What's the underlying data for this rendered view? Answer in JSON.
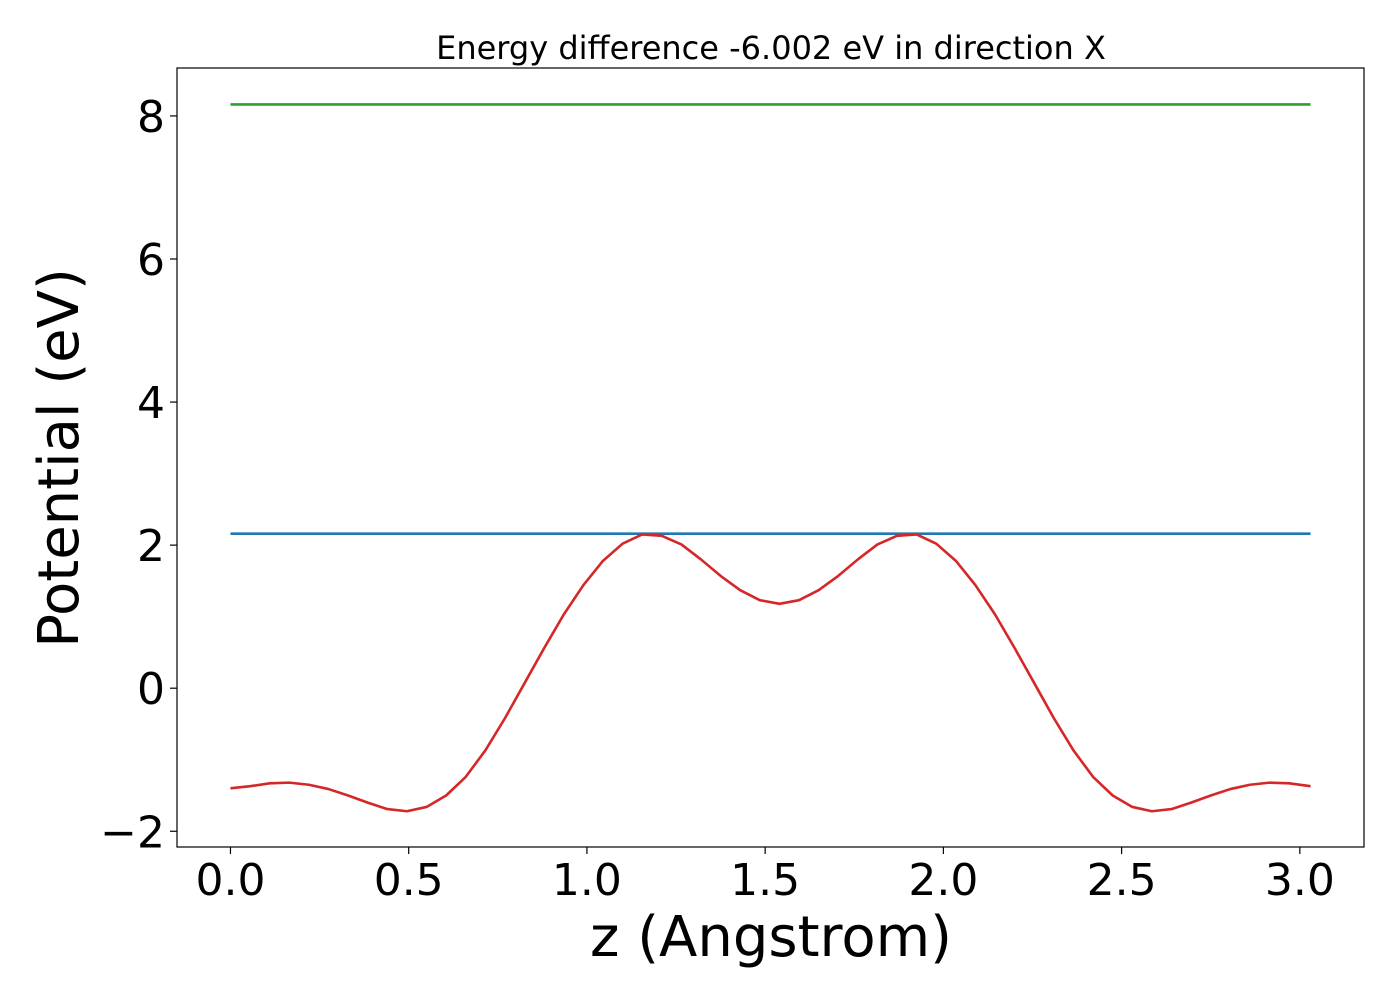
{
  "chart_data": {
    "type": "line",
    "title": "Energy difference -6.002 eV in direction X",
    "xlabel": "z (Angstrom)",
    "ylabel": "Potential (eV)",
    "xlim": [
      -0.15,
      3.18
    ],
    "ylim": [
      -2.22,
      8.67
    ],
    "xticks": [
      0.0,
      0.5,
      1.0,
      1.5,
      2.0,
      2.5,
      3.0
    ],
    "xtick_labels": [
      "0.0",
      "0.5",
      "1.0",
      "1.5",
      "2.0",
      "2.5",
      "3.0"
    ],
    "yticks": [
      -2,
      0,
      2,
      4,
      6,
      8
    ],
    "ytick_labels": [
      "−2",
      "0",
      "2",
      "4",
      "6",
      "8"
    ],
    "grid": false,
    "legend": "none",
    "series": [
      {
        "color": "#2ca02c",
        "x": [
          0.0,
          3.03
        ],
        "y": [
          8.16,
          8.16
        ]
      },
      {
        "color": "#1f77b4",
        "x": [
          0.0,
          3.03
        ],
        "y": [
          2.16,
          2.16
        ]
      },
      {
        "color": "#d62728",
        "x": [
          0.0,
          0.055,
          0.11,
          0.165,
          0.22,
          0.275,
          0.33,
          0.385,
          0.44,
          0.495,
          0.55,
          0.605,
          0.66,
          0.715,
          0.77,
          0.825,
          0.88,
          0.935,
          0.99,
          1.045,
          1.1,
          1.155,
          1.21,
          1.265,
          1.32,
          1.375,
          1.43,
          1.485,
          1.54,
          1.595,
          1.65,
          1.705,
          1.76,
          1.815,
          1.87,
          1.925,
          1.98,
          2.035,
          2.09,
          2.145,
          2.2,
          2.255,
          2.31,
          2.365,
          2.42,
          2.475,
          2.53,
          2.585,
          2.64,
          2.695,
          2.75,
          2.805,
          2.86,
          2.915,
          2.97,
          3.03
        ],
        "y": [
          -1.4,
          -1.37,
          -1.33,
          -1.32,
          -1.35,
          -1.41,
          -1.5,
          -1.6,
          -1.69,
          -1.72,
          -1.66,
          -1.5,
          -1.24,
          -0.87,
          -0.42,
          0.07,
          0.56,
          1.03,
          1.44,
          1.78,
          2.02,
          2.15,
          2.13,
          2.01,
          1.8,
          1.57,
          1.37,
          1.23,
          1.18,
          1.23,
          1.37,
          1.57,
          1.8,
          2.01,
          2.13,
          2.15,
          2.02,
          1.78,
          1.44,
          1.03,
          0.56,
          0.07,
          -0.42,
          -0.87,
          -1.24,
          -1.5,
          -1.66,
          -1.72,
          -1.69,
          -1.6,
          -1.5,
          -1.41,
          -1.35,
          -1.32,
          -1.33,
          -1.37
        ]
      }
    ]
  }
}
